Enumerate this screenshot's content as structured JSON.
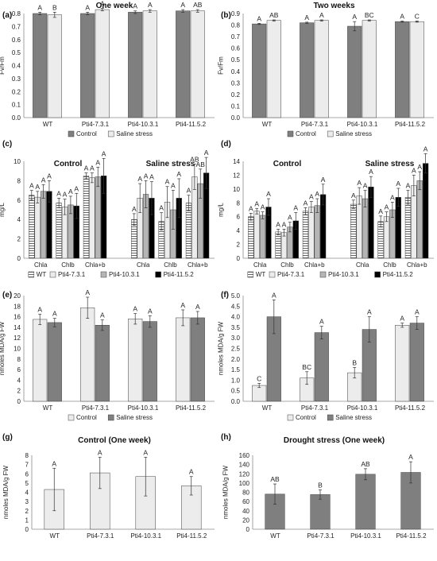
{
  "figure": {
    "colors": {
      "dark": "#7f7f7f",
      "light": "#ececec",
      "black": "#000000",
      "grey": "#b5b5b5",
      "edge": "#404040",
      "grid": "#d9d9d9"
    },
    "panels": [
      {
        "id": "a",
        "tag": "(a)",
        "title": "One week",
        "type": "bar",
        "ylabel": "Fv/Fm",
        "ylim": [
          0,
          0.8
        ],
        "ystep": 0.1,
        "decimals": 1,
        "categories": [
          "WT",
          "Pti4-7.3.1",
          "Pti4-10.3.1",
          "Pti4-11.5.2"
        ],
        "series": [
          {
            "name": "Control",
            "style": "dark",
            "values": [
              0.8,
              0.8,
              0.81,
              0.82
            ],
            "errors": [
              0.01,
              0.01,
              0.01,
              0.01
            ],
            "letters": [
              "A",
              "A",
              "A",
              "A"
            ]
          },
          {
            "name": "Saline stress",
            "style": "light",
            "values": [
              0.79,
              0.83,
              0.82,
              0.82
            ],
            "errors": [
              0.02,
              0.01,
              0.01,
              0.01
            ],
            "letters": [
              "B",
              "A",
              "A",
              "AB"
            ]
          }
        ],
        "legend": [
          "Control",
          "Saline stress"
        ]
      },
      {
        "id": "b",
        "tag": "(b)",
        "title": "Two weeks",
        "type": "bar",
        "ylabel": "Fv/Fm",
        "ylim": [
          0,
          0.9
        ],
        "ystep": 0.1,
        "decimals": 1,
        "categories": [
          "WT",
          "Pti4-7.3.1",
          "Pti4-10.3.1",
          "Pti4-11.5.2"
        ],
        "series": [
          {
            "name": "Control",
            "style": "dark",
            "values": [
              0.81,
              0.82,
              0.79,
              0.83
            ],
            "errors": [
              0.005,
              0.005,
              0.04,
              0.005
            ],
            "letters": [
              "A",
              "A",
              "A",
              "A"
            ]
          },
          {
            "name": "Saline stress",
            "style": "light",
            "values": [
              0.84,
              0.84,
              0.84,
              0.83
            ],
            "errors": [
              0.005,
              0.005,
              0.005,
              0.005
            ],
            "letters": [
              "AB",
              "A",
              "BC",
              "C"
            ]
          }
        ],
        "legend": [
          "Control",
          "Saline stress"
        ]
      },
      {
        "id": "c",
        "tag": "(c)",
        "type": "grouped",
        "ylabel": "mg/L",
        "ylim": [
          0,
          10
        ],
        "ystep": 2,
        "decimals": 0,
        "sections": [
          "Control",
          "Saline stress"
        ],
        "categories": [
          "Chla",
          "Chlb",
          "Chla+b"
        ],
        "series": [
          {
            "name": "WT",
            "style": "hatch",
            "values": [
              6.5,
              5.7,
              8.5,
              4.0,
              3.8,
              5.7
            ],
            "errors": [
              0.5,
              0.5,
              0.3,
              0.6,
              0.9,
              0.8
            ],
            "letters": [
              "A",
              "A",
              "A",
              "A",
              "A",
              "A"
            ]
          },
          {
            "name": "Pti4-7.3.1",
            "style": "light",
            "values": [
              6.3,
              5.3,
              8.3,
              6.2,
              5.8,
              8.4
            ],
            "errors": [
              0.6,
              0.8,
              0.5,
              1.5,
              1.6,
              1.3
            ],
            "letters": [
              "A",
              "A",
              "A",
              "A",
              "A",
              "AB"
            ]
          },
          {
            "name": "Pti4-10.3.1",
            "style": "grey",
            "values": [
              6.9,
              5.5,
              8.4,
              6.6,
              5.0,
              7.7
            ],
            "errors": [
              0.7,
              0.9,
              1.0,
              1.4,
              2.0,
              1.5
            ],
            "letters": [
              "A",
              "A",
              "A",
              "A",
              "A",
              "AB"
            ]
          },
          {
            "name": "Pti4-11.5.2",
            "style": "black",
            "values": [
              6.9,
              5.4,
              8.5,
              6.2,
              6.2,
              8.8
            ],
            "errors": [
              1.1,
              1.3,
              1.8,
              1.7,
              2.0,
              1.6
            ],
            "letters": [
              "A",
              "A",
              "A",
              "A",
              "A",
              "A"
            ]
          }
        ],
        "legend": [
          "WT",
          "Pti4-7.3.1",
          "Pti4-10.3.1",
          "Pti4-11.5.2"
        ]
      },
      {
        "id": "d",
        "tag": "(d)",
        "type": "grouped",
        "ylabel": "mg/L",
        "ylim": [
          0,
          14
        ],
        "ystep": 2,
        "decimals": 0,
        "sections": [
          "Control",
          "Saline stress"
        ],
        "categories": [
          "Chla",
          "Chlb",
          "Chla+b"
        ],
        "series": [
          {
            "name": "WT",
            "style": "hatch",
            "values": [
              6.0,
              3.8,
              6.8,
              7.8,
              5.3,
              8.8
            ],
            "errors": [
              0.5,
              0.4,
              0.5,
              0.6,
              0.8,
              1.0
            ],
            "letters": [
              "A",
              "A",
              "A",
              "A",
              "A",
              "A"
            ]
          },
          {
            "name": "Pti4-7.3.1",
            "style": "light",
            "values": [
              6.8,
              3.7,
              7.4,
              9.0,
              6.0,
              10.5
            ],
            "errors": [
              0.4,
              0.5,
              0.8,
              1.2,
              0.7,
              1.5
            ],
            "letters": [
              "A",
              "A",
              "A",
              "A",
              "A",
              "A"
            ]
          },
          {
            "name": "Pti4-10.3.1",
            "style": "grey",
            "values": [
              6.2,
              4.5,
              7.6,
              8.6,
              7.0,
              11.2
            ],
            "errors": [
              0.5,
              0.7,
              1.0,
              1.2,
              1.1,
              1.3
            ],
            "letters": [
              "A",
              "A",
              "A",
              "A",
              "A",
              "A"
            ]
          },
          {
            "name": "Pti4-11.5.2",
            "style": "black",
            "values": [
              7.4,
              5.4,
              9.2,
              10.3,
              8.8,
              13.7
            ],
            "errors": [
              1.2,
              1.2,
              1.5,
              1.5,
              1.3,
              1.4
            ],
            "letters": [
              "A",
              "A",
              "A",
              "A",
              "A",
              "A"
            ]
          }
        ],
        "legend": [
          "WT",
          "Pti4-7.3.1",
          "Pti4-10.3.1",
          "Pti4-11.5.2"
        ]
      },
      {
        "id": "e",
        "tag": "(e)",
        "type": "bar",
        "ylabel": "nmoles MDA/g FW",
        "ylim": [
          0,
          20
        ],
        "ystep": 2,
        "decimals": 0,
        "categories": [
          "WT",
          "Pti4-7.3.1",
          "Pti4-10.3.1",
          "Pti4-11.5.2"
        ],
        "series": [
          {
            "name": "Control",
            "style": "light",
            "values": [
              15.5,
              17.7,
              15.6,
              15.8
            ],
            "errors": [
              1.0,
              2.0,
              1.0,
              1.5
            ],
            "letters": [
              "A",
              "A",
              "A",
              "A"
            ]
          },
          {
            "name": "Saline stress",
            "style": "dark",
            "values": [
              14.9,
              14.4,
              15.1,
              15.8
            ],
            "errors": [
              0.8,
              1.0,
              1.1,
              1.2
            ],
            "letters": [
              "A",
              "A",
              "A",
              "A"
            ]
          }
        ],
        "legend": [
          "Control",
          "Saline stress"
        ]
      },
      {
        "id": "f",
        "tag": "(f)",
        "type": "bar",
        "ylabel": "nmoles MDA/g FW",
        "ylim": [
          0,
          5
        ],
        "ystep": 0.5,
        "decimals": 1,
        "categories": [
          "WT",
          "Pti4-7.3.1",
          "Pti4-10.3.1",
          "Pti4-11.5.2"
        ],
        "series": [
          {
            "name": "Control",
            "style": "light",
            "values": [
              0.75,
              1.1,
              1.35,
              3.6
            ],
            "errors": [
              0.1,
              0.3,
              0.25,
              0.1
            ],
            "letters": [
              "C",
              "BC",
              "B",
              "A"
            ]
          },
          {
            "name": "Saline stress",
            "style": "dark",
            "values": [
              4.0,
              3.25,
              3.4,
              3.7
            ],
            "errors": [
              0.8,
              0.3,
              0.6,
              0.3
            ],
            "letters": [
              "A",
              "A",
              "A",
              "A"
            ]
          }
        ],
        "legend": [
          "Control",
          "Saline stress"
        ]
      },
      {
        "id": "g",
        "tag": "(g)",
        "title": "Control (One week)",
        "type": "bar",
        "ylabel": "nmoles MDA/g FW",
        "ylim": [
          0,
          8
        ],
        "ystep": 1,
        "decimals": 0,
        "categories": [
          "WT",
          "Pti4-7.3.1",
          "Pti4-10.3.1",
          "Pti4-11.5.2"
        ],
        "series": [
          {
            "name": "Control",
            "style": "light",
            "values": [
              4.3,
              6.1,
              5.7,
              4.7
            ],
            "errors": [
              2.3,
              1.7,
              2.1,
              1.0
            ],
            "letters": [
              "A",
              "A",
              "A",
              "A"
            ]
          }
        ],
        "legend": []
      },
      {
        "id": "h",
        "tag": "(h)",
        "title": "Drought stress (One week)",
        "type": "bar",
        "ylabel": "nmoles MDA/g FW",
        "ylim": [
          0,
          160
        ],
        "ystep": 20,
        "decimals": 0,
        "categories": [
          "WT",
          "Pti4-7.3.1",
          "Pti4-10.3.1",
          "Pti4-11.5.2"
        ],
        "series": [
          {
            "name": "Drought",
            "style": "dark",
            "values": [
              76,
              75,
              119,
              123
            ],
            "errors": [
              22,
              10,
              12,
              23
            ],
            "letters": [
              "AB",
              "B",
              "AB",
              "A"
            ]
          }
        ],
        "legend": []
      }
    ]
  }
}
